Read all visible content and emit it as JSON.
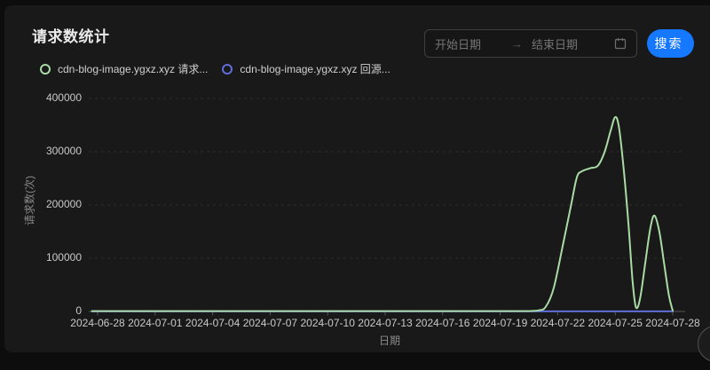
{
  "colors": {
    "accent": "#1677ff",
    "card_bg": "#191919",
    "series_green": "#a9dba5",
    "series_blue": "#5f6ed8"
  },
  "header": {
    "title": "请求数统计"
  },
  "filters": {
    "start_placeholder": "开始日期",
    "end_placeholder": "结束日期",
    "range_separator": "→",
    "search_label": "搜索"
  },
  "legend": [
    {
      "label": "cdn-blog-image.ygxz.xyz 请求...",
      "color": "#a9dba5"
    },
    {
      "label": "cdn-blog-image.ygxz.xyz 回源...",
      "color": "#5f6ed8"
    }
  ],
  "chart_data": {
    "type": "line",
    "title": "请求数统计",
    "xlabel": "日期",
    "ylabel": "请求数(次)",
    "ylim": [
      0,
      400000
    ],
    "y_ticks": [
      0,
      100000,
      200000,
      300000,
      400000
    ],
    "y_tick_labels": [
      "0",
      "100000",
      "200000",
      "300000",
      "400000"
    ],
    "x_tick_labels": [
      "2024-06-28",
      "2024-07-01",
      "2024-07-04",
      "2024-07-07",
      "2024-07-10",
      "2024-07-13",
      "2024-07-16",
      "2024-07-19",
      "2024-07-22",
      "2024-07-25",
      "2024-07-28"
    ],
    "x_unit": "days_from_2024-06-28",
    "grid": "horizontal-dashed",
    "legend_position": "top-left",
    "series": [
      {
        "name": "cdn-blog-image.ygxz.xyz 回源...",
        "color": "#5f6ed8",
        "points": [
          [
            -0.3,
            100
          ],
          [
            30,
            100
          ]
        ]
      },
      {
        "name": "cdn-blog-image.ygxz.xyz 请求...",
        "color": "#a9dba5",
        "points": [
          [
            -0.3,
            600
          ],
          [
            4,
            600
          ],
          [
            9,
            600
          ],
          [
            14,
            600
          ],
          [
            19,
            600
          ],
          [
            22,
            650
          ],
          [
            23,
            2000
          ],
          [
            23.4,
            10000
          ],
          [
            23.8,
            45000
          ],
          [
            24.3,
            130000
          ],
          [
            24.7,
            200000
          ],
          [
            25,
            252000
          ],
          [
            25.25,
            263000
          ],
          [
            25.7,
            269000
          ],
          [
            26.1,
            274000
          ],
          [
            26.45,
            300000
          ],
          [
            26.75,
            338000
          ],
          [
            27,
            365000
          ],
          [
            27.2,
            345000
          ],
          [
            27.45,
            265000
          ],
          [
            27.7,
            160000
          ],
          [
            27.9,
            60000
          ],
          [
            28.08,
            8000
          ],
          [
            28.3,
            25000
          ],
          [
            28.6,
            100000
          ],
          [
            28.85,
            160000
          ],
          [
            29.05,
            180000
          ],
          [
            29.3,
            150000
          ],
          [
            29.55,
            90000
          ],
          [
            29.8,
            30000
          ],
          [
            30,
            1500
          ]
        ]
      }
    ]
  }
}
